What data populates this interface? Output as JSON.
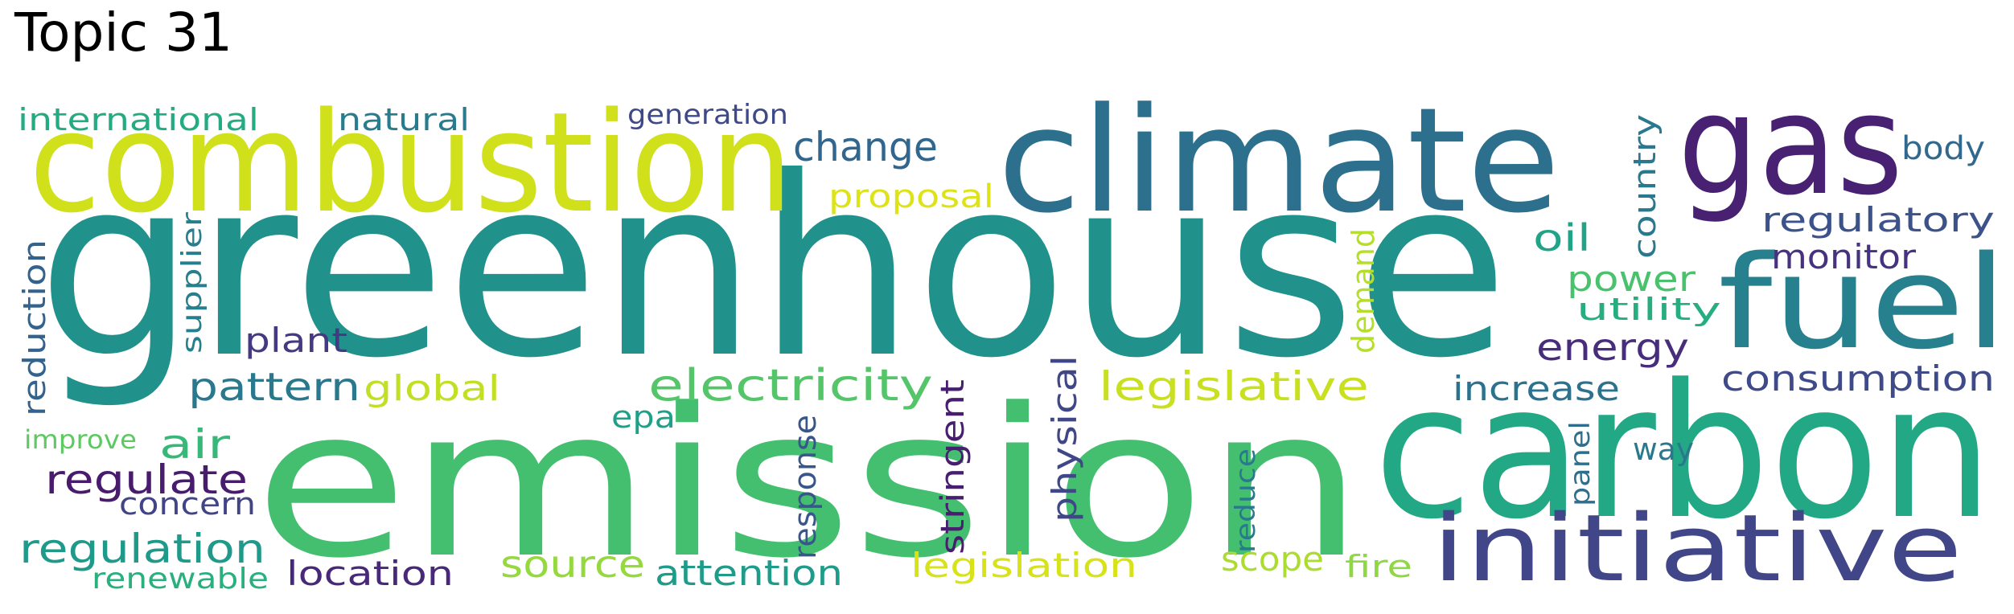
{
  "title": "Topic 31",
  "words": [
    {
      "text": "greenhouse",
      "color": "#21918c"
    },
    {
      "text": "emission",
      "color": "#44bf70"
    },
    {
      "text": "carbon",
      "color": "#22a884"
    },
    {
      "text": "combustion",
      "color": "#d0e11c"
    },
    {
      "text": "climate",
      "color": "#2d708e"
    },
    {
      "text": "gas",
      "color": "#482173"
    },
    {
      "text": "fuel",
      "color": "#27808e"
    },
    {
      "text": "initiative",
      "color": "#404688"
    },
    {
      "text": "electricity",
      "color": "#54c568"
    },
    {
      "text": "legislative",
      "color": "#c8e020"
    },
    {
      "text": "change",
      "color": "#31668e"
    },
    {
      "text": "proposal",
      "color": "#dde318"
    },
    {
      "text": "regulatory",
      "color": "#3b528b"
    },
    {
      "text": "consumption",
      "color": "#3e4a89"
    },
    {
      "text": "energy",
      "color": "#472d7b"
    },
    {
      "text": "power",
      "color": "#4ac16d"
    },
    {
      "text": "utility",
      "color": "#26ad81"
    },
    {
      "text": "monitor",
      "color": "#46327e"
    },
    {
      "text": "oil",
      "color": "#20a386"
    },
    {
      "text": "country",
      "color": "#2a788e"
    },
    {
      "text": "body",
      "color": "#31688e"
    },
    {
      "text": "increase",
      "color": "#2c728e"
    },
    {
      "text": "pattern",
      "color": "#2a788e"
    },
    {
      "text": "global",
      "color": "#c2df23"
    },
    {
      "text": "plant",
      "color": "#443983"
    },
    {
      "text": "air",
      "color": "#37b878"
    },
    {
      "text": "regulate",
      "color": "#481b6d"
    },
    {
      "text": "concern",
      "color": "#414487"
    },
    {
      "text": "regulation",
      "color": "#1f9a8a"
    },
    {
      "text": "renewable",
      "color": "#2ab07f"
    },
    {
      "text": "location",
      "color": "#482878"
    },
    {
      "text": "source",
      "color": "#95d840"
    },
    {
      "text": "attention",
      "color": "#1e9c89"
    },
    {
      "text": "legislation",
      "color": "#d8e219"
    },
    {
      "text": "scope",
      "color": "#addc30"
    },
    {
      "text": "fire",
      "color": "#8fd744"
    },
    {
      "text": "way",
      "color": "#2a788e"
    },
    {
      "text": "international",
      "color": "#25ab82"
    },
    {
      "text": "natural",
      "color": "#287c8e"
    },
    {
      "text": "generation",
      "color": "#3e4989"
    },
    {
      "text": "epa",
      "color": "#1fa088"
    },
    {
      "text": "improve",
      "color": "#5ec962"
    },
    {
      "text": "reduction",
      "color": "#33638d"
    },
    {
      "text": "supplier",
      "color": "#277f8e"
    },
    {
      "text": "demand",
      "color": "#b5de2b"
    },
    {
      "text": "response",
      "color": "#39568c"
    },
    {
      "text": "stringent",
      "color": "#481f70"
    },
    {
      "text": "physical",
      "color": "#3f4788"
    },
    {
      "text": "reduce",
      "color": "#29798e"
    },
    {
      "text": "panel",
      "color": "#2e6e8e"
    }
  ]
}
